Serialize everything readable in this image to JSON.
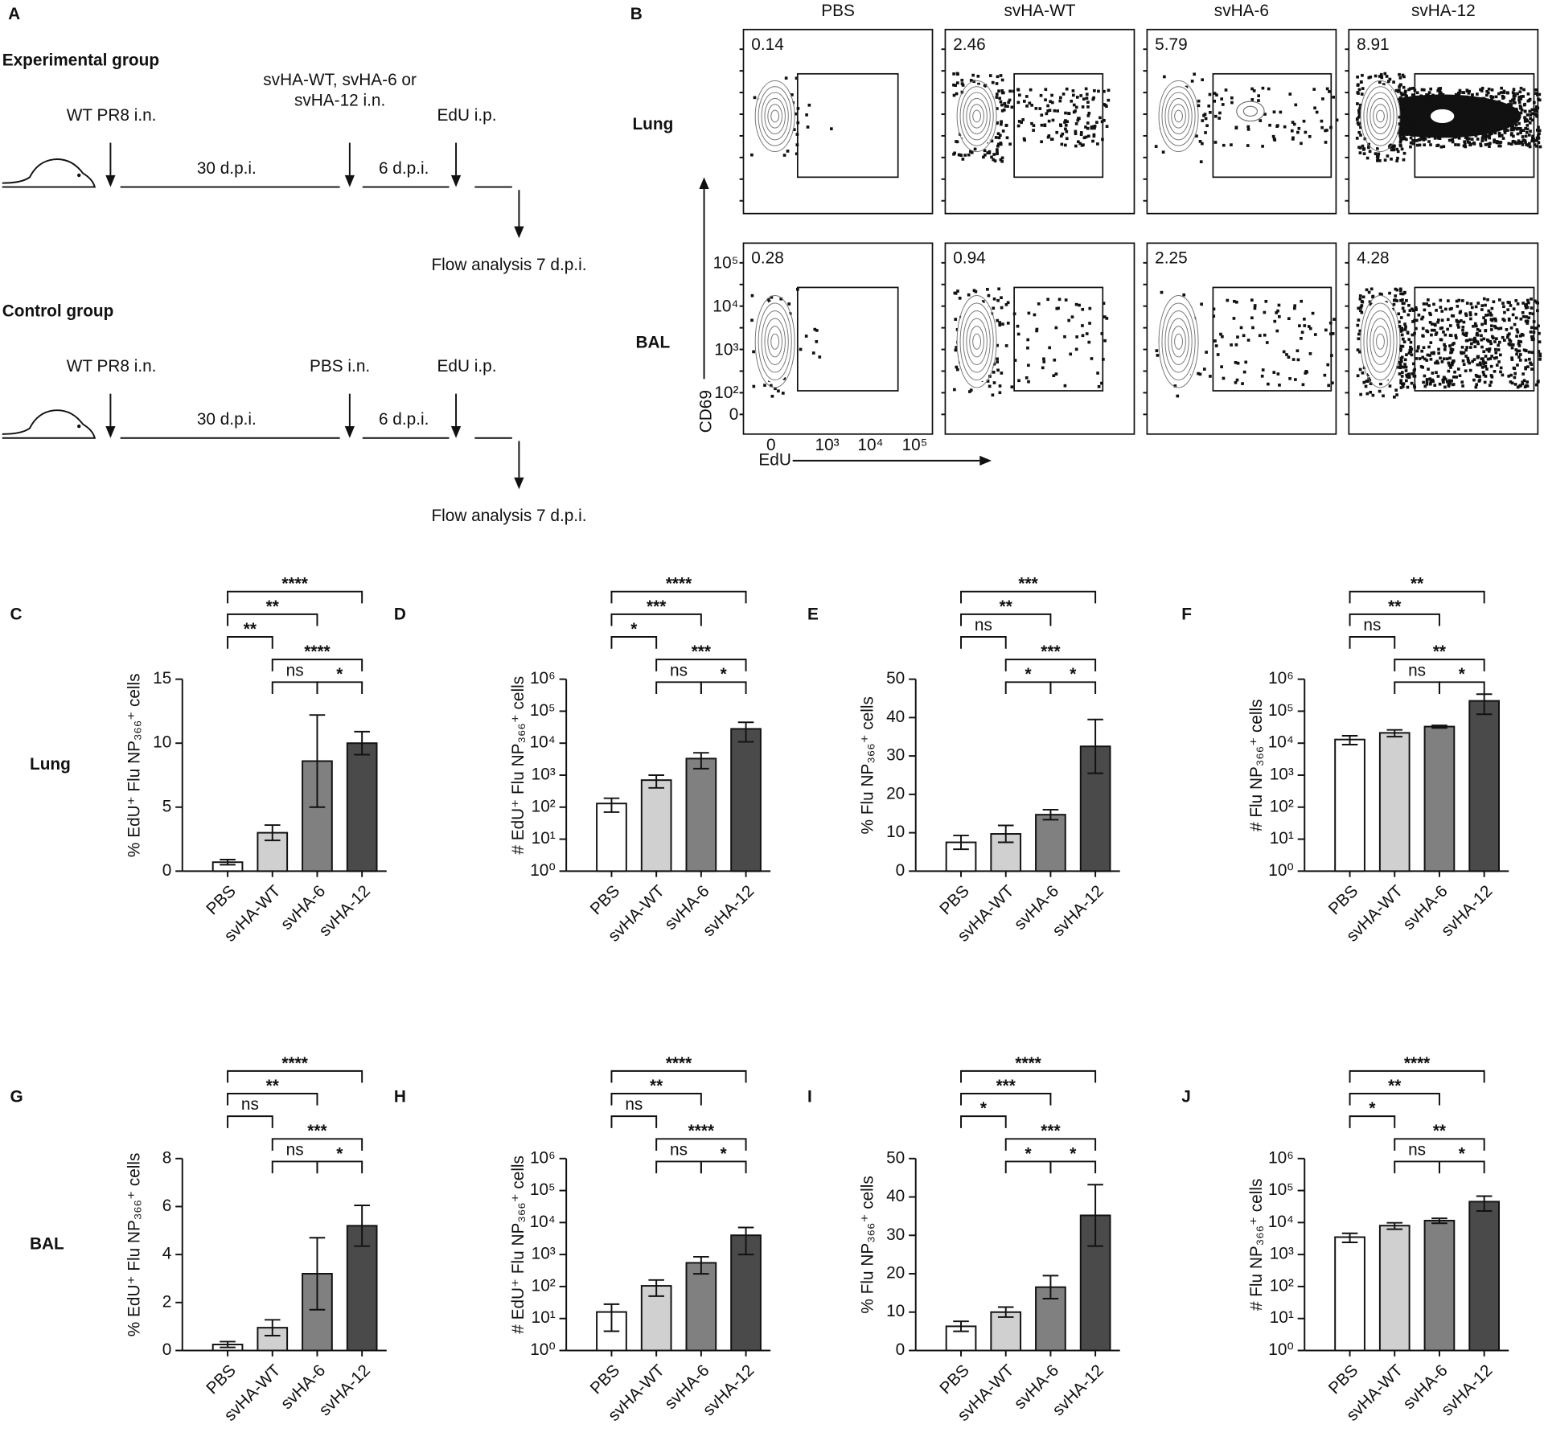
{
  "panel_a": {
    "label": "A",
    "groups": [
      {
        "title": "Experimental group",
        "first": "WT PR8 i.n.",
        "second": [
          "svHA-WT, svHA-6 or",
          "svHA-12 i.n."
        ],
        "third": "EdU i.p.",
        "interval1": "30 d.p.i.",
        "interval2": "6 d.p.i.",
        "readout": "Flow analysis 7 d.p.i."
      },
      {
        "title": "Control group",
        "first": "WT PR8 i.n.",
        "second": [
          "PBS i.n."
        ],
        "third": "EdU i.p.",
        "interval1": "30 d.p.i.",
        "interval2": "6 d.p.i.",
        "readout": "Flow analysis 7 d.p.i."
      }
    ]
  },
  "panel_b": {
    "label": "B",
    "columns": [
      "PBS",
      "svHA-WT",
      "svHA-6",
      "svHA-12"
    ],
    "rows": [
      "Lung",
      "BAL"
    ],
    "gates": [
      [
        0.14,
        2.46,
        5.79,
        8.91
      ],
      [
        0.28,
        0.94,
        2.25,
        4.28
      ]
    ],
    "y_axis": "CD69",
    "x_axis": "EdU",
    "y_ticks": [
      "10⁵",
      "10⁴",
      "10³",
      "10²",
      "0"
    ],
    "x_ticks": [
      "0",
      "10³",
      "10⁴",
      "10⁵"
    ]
  },
  "chart_data": [
    {
      "type": "bar",
      "panel": "C",
      "row_label": "Lung",
      "y_label": "% EdU⁺ Flu NP₃₆₆⁺ cells",
      "categories": [
        "PBS",
        "svHA-WT",
        "svHA-6",
        "svHA-12"
      ],
      "values": [
        0.7,
        3.0,
        8.6,
        10.0
      ],
      "errors": [
        0.2,
        0.6,
        3.6,
        0.9
      ],
      "colors": [
        "#ffffff",
        "#d0d0d0",
        "#808080",
        "#4a4a4a"
      ],
      "log_scale": false,
      "ylim": [
        0,
        15
      ],
      "yticks": [
        0,
        5,
        10,
        15
      ],
      "comparisons": [
        {
          "pair": [
            0,
            1
          ],
          "label": "**"
        },
        {
          "pair": [
            0,
            2
          ],
          "label": "**"
        },
        {
          "pair": [
            0,
            3
          ],
          "label": "****"
        },
        {
          "pair": [
            1,
            3
          ],
          "label": "****"
        },
        {
          "pair": [
            1,
            2
          ],
          "label": "ns"
        },
        {
          "pair": [
            2,
            3
          ],
          "label": "*"
        }
      ]
    },
    {
      "type": "bar",
      "panel": "D",
      "y_label": "# EdU⁺ Flu NP₃₆₆⁺ cells",
      "categories": [
        "PBS",
        "svHA-WT",
        "svHA-6",
        "svHA-12"
      ],
      "values": [
        130,
        700,
        3300,
        28000
      ],
      "errors": [
        60,
        300,
        1700,
        17000
      ],
      "colors": [
        "#ffffff",
        "#d0d0d0",
        "#808080",
        "#4a4a4a"
      ],
      "log_scale": true,
      "ylim": [
        1,
        1000000
      ],
      "yticks": [
        {
          "value": 1,
          "label": "10⁰"
        },
        {
          "value": 10,
          "label": "10¹"
        },
        {
          "value": 100,
          "label": "10²"
        },
        {
          "value": 1000,
          "label": "10³"
        },
        {
          "value": 10000,
          "label": "10⁴"
        },
        {
          "value": 100000,
          "label": "10⁵"
        },
        {
          "value": 1000000,
          "label": "10⁶"
        }
      ],
      "comparisons": [
        {
          "pair": [
            0,
            1
          ],
          "label": "*"
        },
        {
          "pair": [
            0,
            2
          ],
          "label": "***"
        },
        {
          "pair": [
            0,
            3
          ],
          "label": "****"
        },
        {
          "pair": [
            1,
            3
          ],
          "label": "***"
        },
        {
          "pair": [
            1,
            2
          ],
          "label": "ns"
        },
        {
          "pair": [
            2,
            3
          ],
          "label": "*"
        }
      ]
    },
    {
      "type": "bar",
      "panel": "E",
      "y_label": "% Flu NP₃₆₆⁺ cells",
      "categories": [
        "PBS",
        "svHA-WT",
        "svHA-6",
        "svHA-12"
      ],
      "values": [
        7.5,
        9.7,
        14.7,
        32.5
      ],
      "errors": [
        1.8,
        2.2,
        1.3,
        7
      ],
      "colors": [
        "#ffffff",
        "#d0d0d0",
        "#808080",
        "#4a4a4a"
      ],
      "log_scale": false,
      "ylim": [
        0,
        50
      ],
      "yticks": [
        0,
        10,
        20,
        30,
        40,
        50
      ],
      "comparisons": [
        {
          "pair": [
            0,
            1
          ],
          "label": "ns"
        },
        {
          "pair": [
            0,
            2
          ],
          "label": "**"
        },
        {
          "pair": [
            0,
            3
          ],
          "label": "***"
        },
        {
          "pair": [
            1,
            3
          ],
          "label": "***"
        },
        {
          "pair": [
            1,
            2
          ],
          "label": "*"
        },
        {
          "pair": [
            2,
            3
          ],
          "label": "*"
        }
      ]
    },
    {
      "type": "bar",
      "panel": "F",
      "y_label": "# Flu NP₃₆₆⁺ cells",
      "categories": [
        "PBS",
        "svHA-WT",
        "svHA-6",
        "svHA-12"
      ],
      "values": [
        13000,
        21000,
        33000,
        210000
      ],
      "errors": [
        4000,
        5000,
        3000,
        130000
      ],
      "colors": [
        "#ffffff",
        "#d0d0d0",
        "#808080",
        "#4a4a4a"
      ],
      "log_scale": true,
      "ylim": [
        1,
        1000000
      ],
      "yticks": [
        {
          "value": 1,
          "label": "10⁰"
        },
        {
          "value": 10,
          "label": "10¹"
        },
        {
          "value": 100,
          "label": "10²"
        },
        {
          "value": 1000,
          "label": "10³"
        },
        {
          "value": 10000,
          "label": "10⁴"
        },
        {
          "value": 100000,
          "label": "10⁵"
        },
        {
          "value": 1000000,
          "label": "10⁶"
        }
      ],
      "comparisons": [
        {
          "pair": [
            0,
            1
          ],
          "label": "ns"
        },
        {
          "pair": [
            0,
            2
          ],
          "label": "**"
        },
        {
          "pair": [
            0,
            3
          ],
          "label": "**"
        },
        {
          "pair": [
            1,
            3
          ],
          "label": "**"
        },
        {
          "pair": [
            1,
            2
          ],
          "label": "ns"
        },
        {
          "pair": [
            2,
            3
          ],
          "label": "*"
        }
      ]
    },
    {
      "type": "bar",
      "panel": "G",
      "row_label": "BAL",
      "y_label": "% EdU⁺ Flu NP₃₆₆⁺ cells",
      "categories": [
        "PBS",
        "svHA-WT",
        "svHA-6",
        "svHA-12"
      ],
      "values": [
        0.25,
        0.95,
        3.2,
        5.2
      ],
      "errors": [
        0.12,
        0.33,
        1.5,
        0.85
      ],
      "colors": [
        "#ffffff",
        "#d0d0d0",
        "#808080",
        "#4a4a4a"
      ],
      "log_scale": false,
      "ylim": [
        0,
        8
      ],
      "yticks": [
        0,
        2,
        4,
        6,
        8
      ],
      "comparisons": [
        {
          "pair": [
            0,
            1
          ],
          "label": "ns"
        },
        {
          "pair": [
            0,
            2
          ],
          "label": "**"
        },
        {
          "pair": [
            0,
            3
          ],
          "label": "****"
        },
        {
          "pair": [
            1,
            3
          ],
          "label": "***"
        },
        {
          "pair": [
            1,
            2
          ],
          "label": "ns"
        },
        {
          "pair": [
            2,
            3
          ],
          "label": "*"
        }
      ]
    },
    {
      "type": "bar",
      "panel": "H",
      "y_label": "# EdU⁺ Flu NP₃₆₆⁺ cells",
      "categories": [
        "PBS",
        "svHA-WT",
        "svHA-6",
        "svHA-12"
      ],
      "values": [
        16,
        105,
        550,
        4000
      ],
      "errors": [
        12,
        55,
        300,
        3000
      ],
      "colors": [
        "#ffffff",
        "#d0d0d0",
        "#808080",
        "#4a4a4a"
      ],
      "log_scale": true,
      "ylim": [
        1,
        1000000
      ],
      "yticks": [
        {
          "value": 1,
          "label": "10⁰"
        },
        {
          "value": 10,
          "label": "10¹"
        },
        {
          "value": 100,
          "label": "10²"
        },
        {
          "value": 1000,
          "label": "10³"
        },
        {
          "value": 10000,
          "label": "10⁴"
        },
        {
          "value": 100000,
          "label": "10⁵"
        },
        {
          "value": 1000000,
          "label": "10⁶"
        }
      ],
      "comparisons": [
        {
          "pair": [
            0,
            1
          ],
          "label": "ns"
        },
        {
          "pair": [
            0,
            2
          ],
          "label": "**"
        },
        {
          "pair": [
            0,
            3
          ],
          "label": "****"
        },
        {
          "pair": [
            1,
            3
          ],
          "label": "****"
        },
        {
          "pair": [
            1,
            2
          ],
          "label": "ns"
        },
        {
          "pair": [
            2,
            3
          ],
          "label": "*"
        }
      ]
    },
    {
      "type": "bar",
      "panel": "I",
      "y_label": "% Flu NP₃₆₆⁺ cells",
      "categories": [
        "PBS",
        "svHA-WT",
        "svHA-6",
        "svHA-12"
      ],
      "values": [
        6.3,
        10,
        16.5,
        35.2
      ],
      "errors": [
        1.3,
        1.3,
        3,
        8
      ],
      "colors": [
        "#ffffff",
        "#d0d0d0",
        "#808080",
        "#4a4a4a"
      ],
      "log_scale": false,
      "ylim": [
        0,
        50
      ],
      "yticks": [
        0,
        10,
        20,
        30,
        40,
        50
      ],
      "comparisons": [
        {
          "pair": [
            0,
            1
          ],
          "label": "*"
        },
        {
          "pair": [
            0,
            2
          ],
          "label": "***"
        },
        {
          "pair": [
            0,
            3
          ],
          "label": "****"
        },
        {
          "pair": [
            1,
            3
          ],
          "label": "***"
        },
        {
          "pair": [
            1,
            2
          ],
          "label": "*"
        },
        {
          "pair": [
            2,
            3
          ],
          "label": "*"
        }
      ]
    },
    {
      "type": "bar",
      "panel": "J",
      "y_label": "# Flu NP₃₆₆⁺ cells",
      "categories": [
        "PBS",
        "svHA-WT",
        "svHA-6",
        "svHA-12"
      ],
      "values": [
        3500,
        8000,
        11500,
        45000
      ],
      "errors": [
        1100,
        1800,
        2000,
        22000
      ],
      "colors": [
        "#ffffff",
        "#d0d0d0",
        "#808080",
        "#4a4a4a"
      ],
      "log_scale": true,
      "ylim": [
        1,
        1000000
      ],
      "yticks": [
        {
          "value": 1,
          "label": "10⁰"
        },
        {
          "value": 10,
          "label": "10¹"
        },
        {
          "value": 100,
          "label": "10²"
        },
        {
          "value": 1000,
          "label": "10³"
        },
        {
          "value": 10000,
          "label": "10⁴"
        },
        {
          "value": 100000,
          "label": "10⁵"
        },
        {
          "value": 1000000,
          "label": "10⁶"
        }
      ],
      "comparisons": [
        {
          "pair": [
            0,
            1
          ],
          "label": "*"
        },
        {
          "pair": [
            0,
            2
          ],
          "label": "**"
        },
        {
          "pair": [
            0,
            3
          ],
          "label": "****"
        },
        {
          "pair": [
            1,
            3
          ],
          "label": "**"
        },
        {
          "pair": [
            1,
            2
          ],
          "label": "ns"
        },
        {
          "pair": [
            2,
            3
          ],
          "label": "*"
        }
      ]
    }
  ]
}
